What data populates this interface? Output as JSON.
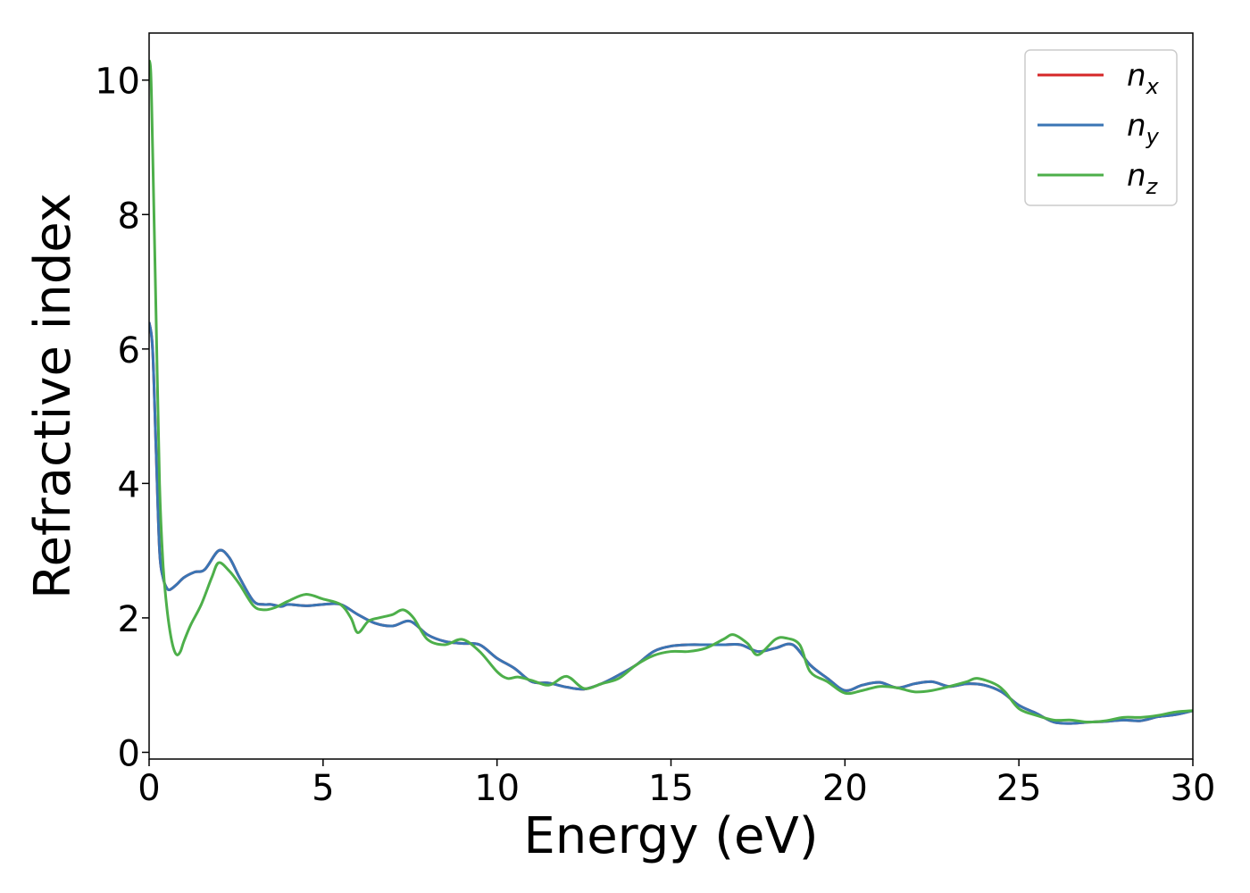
{
  "chart_data": {
    "type": "line",
    "title": "",
    "xlabel": "Energy (eV)",
    "ylabel": "Refractive index",
    "xlim": [
      0,
      30
    ],
    "ylim": [
      -0.1,
      10.7
    ],
    "xticks": [
      0,
      5,
      10,
      15,
      20,
      25,
      30
    ],
    "yticks": [
      0,
      2,
      4,
      6,
      8,
      10
    ],
    "xtick_labels": [
      "0",
      "5",
      "10",
      "15",
      "20",
      "25",
      "30"
    ],
    "ytick_labels": [
      "0",
      "2",
      "4",
      "6",
      "8",
      "10"
    ],
    "grid": false,
    "legend": "top-right",
    "series": [
      {
        "name": "n",
        "subscript": "x",
        "color": "#d62728",
        "x": [
          0,
          0.1,
          0.2,
          0.3,
          0.4,
          0.5,
          0.6,
          0.8,
          1.0,
          1.3,
          1.6,
          2.0,
          2.3,
          2.6,
          3.0,
          3.3,
          3.5,
          3.8,
          4.0,
          4.5,
          5.0,
          5.5,
          6.0,
          6.5,
          7.0,
          7.5,
          8.0,
          8.5,
          9.0,
          9.5,
          10.0,
          10.5,
          11.0,
          11.5,
          12.0,
          12.5,
          13.0,
          13.5,
          14.0,
          14.5,
          15.0,
          15.5,
          16.0,
          16.5,
          17.0,
          17.5,
          18.0,
          18.5,
          19.0,
          19.5,
          20.0,
          20.5,
          21.0,
          21.5,
          22.0,
          22.5,
          23.0,
          23.5,
          24.0,
          24.5,
          25.0,
          25.5,
          26.0,
          26.5,
          27.0,
          27.5,
          28.0,
          28.5,
          29.0,
          29.5,
          30.0
        ],
        "y": [
          6.4,
          6.0,
          4.5,
          3.0,
          2.6,
          2.45,
          2.42,
          2.5,
          2.6,
          2.68,
          2.72,
          3.0,
          2.9,
          2.6,
          2.25,
          2.2,
          2.2,
          2.17,
          2.2,
          2.18,
          2.2,
          2.2,
          2.05,
          1.92,
          1.88,
          1.95,
          1.75,
          1.65,
          1.62,
          1.6,
          1.4,
          1.25,
          1.05,
          1.03,
          0.97,
          0.94,
          1.02,
          1.15,
          1.3,
          1.5,
          1.58,
          1.6,
          1.6,
          1.6,
          1.6,
          1.5,
          1.55,
          1.6,
          1.3,
          1.1,
          0.92,
          1.0,
          1.04,
          0.96,
          1.02,
          1.05,
          0.98,
          1.02,
          1.0,
          0.9,
          0.7,
          0.58,
          0.45,
          0.43,
          0.45,
          0.46,
          0.48,
          0.47,
          0.53,
          0.56,
          0.62
        ]
      },
      {
        "name": "n",
        "subscript": "y",
        "color": "#3a75b4",
        "x": [
          0,
          0.1,
          0.2,
          0.3,
          0.4,
          0.5,
          0.6,
          0.8,
          1.0,
          1.3,
          1.6,
          2.0,
          2.3,
          2.6,
          3.0,
          3.3,
          3.5,
          3.8,
          4.0,
          4.5,
          5.0,
          5.5,
          6.0,
          6.5,
          7.0,
          7.5,
          8.0,
          8.5,
          9.0,
          9.5,
          10.0,
          10.5,
          11.0,
          11.5,
          12.0,
          12.5,
          13.0,
          13.5,
          14.0,
          14.5,
          15.0,
          15.5,
          16.0,
          16.5,
          17.0,
          17.5,
          18.0,
          18.5,
          19.0,
          19.5,
          20.0,
          20.5,
          21.0,
          21.5,
          22.0,
          22.5,
          23.0,
          23.5,
          24.0,
          24.5,
          25.0,
          25.5,
          26.0,
          26.5,
          27.0,
          27.5,
          28.0,
          28.5,
          29.0,
          29.5,
          30.0
        ],
        "y": [
          6.4,
          6.0,
          4.5,
          3.0,
          2.6,
          2.45,
          2.42,
          2.5,
          2.6,
          2.68,
          2.72,
          3.0,
          2.9,
          2.6,
          2.25,
          2.2,
          2.2,
          2.17,
          2.2,
          2.18,
          2.2,
          2.2,
          2.05,
          1.92,
          1.88,
          1.95,
          1.75,
          1.65,
          1.62,
          1.6,
          1.4,
          1.25,
          1.05,
          1.03,
          0.97,
          0.94,
          1.02,
          1.15,
          1.3,
          1.5,
          1.58,
          1.6,
          1.6,
          1.6,
          1.6,
          1.5,
          1.55,
          1.6,
          1.3,
          1.1,
          0.92,
          1.0,
          1.04,
          0.96,
          1.02,
          1.05,
          0.98,
          1.02,
          1.0,
          0.9,
          0.7,
          0.58,
          0.45,
          0.43,
          0.45,
          0.46,
          0.48,
          0.47,
          0.53,
          0.56,
          0.62
        ]
      },
      {
        "name": "n",
        "subscript": "z",
        "color": "#4daf4a",
        "x": [
          0,
          0.05,
          0.1,
          0.2,
          0.3,
          0.4,
          0.5,
          0.6,
          0.7,
          0.8,
          0.9,
          1.0,
          1.2,
          1.5,
          1.8,
          2.0,
          2.3,
          2.6,
          3.0,
          3.3,
          3.6,
          4.0,
          4.5,
          5.0,
          5.5,
          5.8,
          6.0,
          6.3,
          6.6,
          7.0,
          7.3,
          7.6,
          8.0,
          8.5,
          9.0,
          9.5,
          10.0,
          10.3,
          10.6,
          11.0,
          11.5,
          12.0,
          12.5,
          13.0,
          13.5,
          14.0,
          14.5,
          15.0,
          15.5,
          16.0,
          16.5,
          16.8,
          17.2,
          17.5,
          18.0,
          18.3,
          18.7,
          19.0,
          19.5,
          20.0,
          20.5,
          21.0,
          21.5,
          22.0,
          22.5,
          23.0,
          23.5,
          23.8,
          24.3,
          24.6,
          25.0,
          25.5,
          26.0,
          26.5,
          27.0,
          27.5,
          28.0,
          28.5,
          29.0,
          29.5,
          30.0
        ],
        "y": [
          10.3,
          10.1,
          9.0,
          6.5,
          4.0,
          2.8,
          2.2,
          1.8,
          1.55,
          1.45,
          1.5,
          1.65,
          1.9,
          2.2,
          2.6,
          2.82,
          2.7,
          2.5,
          2.18,
          2.12,
          2.15,
          2.25,
          2.35,
          2.28,
          2.2,
          2.0,
          1.78,
          1.95,
          2.0,
          2.05,
          2.12,
          2.0,
          1.68,
          1.6,
          1.68,
          1.5,
          1.2,
          1.1,
          1.12,
          1.07,
          1.0,
          1.13,
          0.95,
          1.02,
          1.1,
          1.3,
          1.44,
          1.5,
          1.5,
          1.55,
          1.68,
          1.75,
          1.62,
          1.45,
          1.68,
          1.7,
          1.6,
          1.2,
          1.05,
          0.88,
          0.92,
          0.98,
          0.96,
          0.9,
          0.92,
          0.98,
          1.05,
          1.1,
          1.02,
          0.9,
          0.65,
          0.55,
          0.48,
          0.48,
          0.45,
          0.47,
          0.52,
          0.52,
          0.55,
          0.6,
          0.62
        ]
      }
    ]
  }
}
